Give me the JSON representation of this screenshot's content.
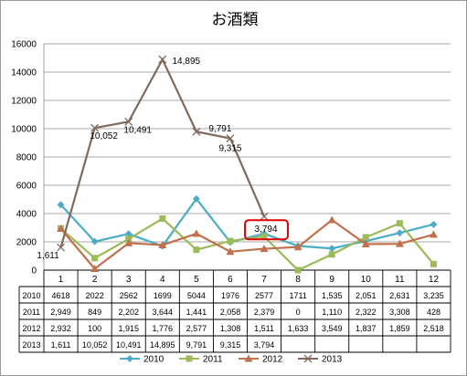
{
  "chart_data": {
    "type": "line",
    "title": "お酒類",
    "xlabel": "",
    "ylabel": "",
    "ylim": [
      0,
      16000
    ],
    "yticks": [
      0,
      2000,
      4000,
      6000,
      8000,
      10000,
      12000,
      14000,
      16000
    ],
    "categories": [
      "1",
      "2",
      "3",
      "4",
      "5",
      "6",
      "7",
      "8",
      "9",
      "10",
      "11",
      "12"
    ],
    "grid": true,
    "legend_position": "bottom",
    "series": [
      {
        "name": "2010",
        "color": "#4bacc6",
        "marker": "diamond",
        "values": [
          4618,
          2022,
          2562,
          1699,
          5044,
          1976,
          2577,
          1711,
          1535,
          2051,
          2631,
          3235
        ],
        "table_values": [
          "4618",
          "2022",
          "2562",
          "1699",
          "5044",
          "1976",
          "2577",
          "1711",
          "1,535",
          "2,051",
          "2,631",
          "3,235"
        ]
      },
      {
        "name": "2011",
        "color": "#9bbb59",
        "marker": "square",
        "values": [
          2949,
          849,
          2202,
          3644,
          1441,
          2058,
          2379,
          0,
          1110,
          2322,
          3308,
          428
        ],
        "table_values": [
          "2,949",
          "849",
          "2,202",
          "3,644",
          "1,441",
          "2,058",
          "2,379",
          "0",
          "1,110",
          "2,322",
          "3,308",
          "428"
        ]
      },
      {
        "name": "2012",
        "color": "#c0704a",
        "marker": "triangle",
        "values": [
          2932,
          100,
          1915,
          1776,
          2577,
          1308,
          1511,
          1633,
          3549,
          1837,
          1859,
          2518
        ],
        "table_values": [
          "2,932",
          "100",
          "1,915",
          "1,776",
          "2,577",
          "1,308",
          "1,511",
          "1,633",
          "3,549",
          "1,837",
          "1,859",
          "2,518"
        ]
      },
      {
        "name": "2013",
        "color": "#7f6a5c",
        "marker": "x",
        "values": [
          1611,
          10052,
          10491,
          14895,
          9791,
          9315,
          3794,
          null,
          null,
          null,
          null,
          null
        ],
        "table_values": [
          "1,611",
          "10,052",
          "10,491",
          "14,895",
          "9,791",
          "9,315",
          "3,794",
          "",
          "",
          "",
          "",
          ""
        ]
      }
    ],
    "data_labels": [
      {
        "series": "2013",
        "index": 0,
        "text": "1,611"
      },
      {
        "series": "2013",
        "index": 1,
        "text": "10,052"
      },
      {
        "series": "2013",
        "index": 2,
        "text": "10,491"
      },
      {
        "series": "2013",
        "index": 3,
        "text": "14,895"
      },
      {
        "series": "2013",
        "index": 4,
        "text": "9,791"
      },
      {
        "series": "2013",
        "index": 5,
        "text": "9,315"
      },
      {
        "series": "2013",
        "index": 6,
        "text": "3,794"
      }
    ],
    "highlight": {
      "series": "2013",
      "index": 6,
      "color": "#e00000"
    }
  }
}
